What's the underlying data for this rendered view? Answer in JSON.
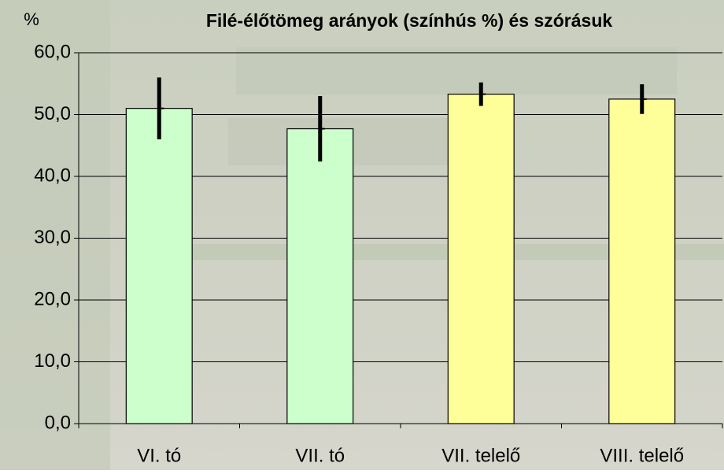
{
  "chart_data": {
    "type": "bar",
    "title": "Filé-élőtömeg arányok (színhús %)  és szórásuk",
    "y_label": "%",
    "categories": [
      "VI. tó",
      "VII. tó",
      "VII. telelő",
      "VIII. telelő"
    ],
    "series": [
      {
        "colors": [
          "#ccffcc",
          "#ccffcc",
          "#ffff99",
          "#ffff99"
        ],
        "values": [
          51.0,
          47.7,
          53.3,
          52.5
        ],
        "errors": [
          5.0,
          5.3,
          1.9,
          2.4
        ]
      }
    ],
    "ylim": [
      0,
      60
    ],
    "yticks": [
      {
        "value": 0,
        "label": "0,0"
      },
      {
        "value": 10,
        "label": "10,0"
      },
      {
        "value": 20,
        "label": "20,0"
      },
      {
        "value": 30,
        "label": "30,0"
      },
      {
        "value": 40,
        "label": "40,0"
      },
      {
        "value": 50,
        "label": "50,0"
      },
      {
        "value": 60,
        "label": "60,0"
      }
    ],
    "grid": true
  }
}
